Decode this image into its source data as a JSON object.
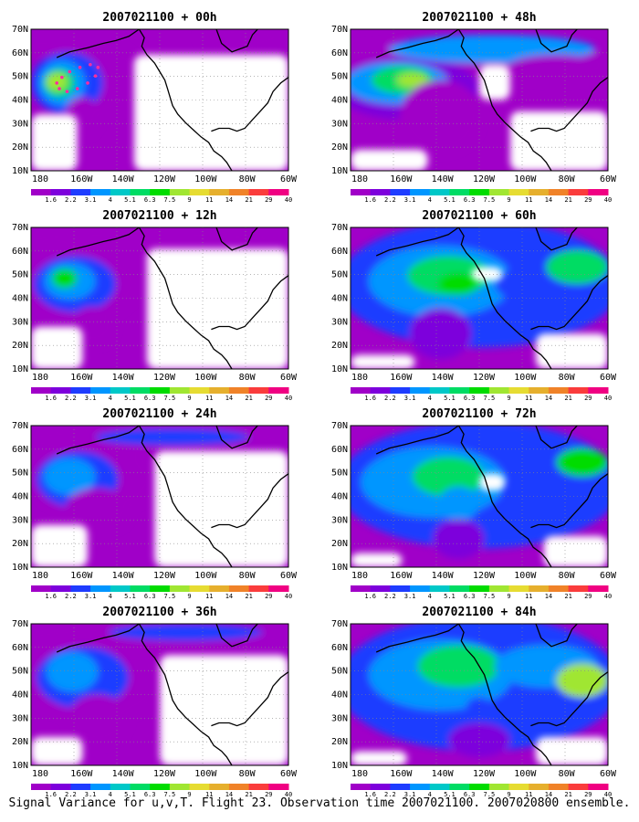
{
  "caption": "Signal Variance for u,v,T. Flight 23. Observation time 2007021100. 2007020800 ensemble.",
  "lat_labels": [
    "70N",
    "60N",
    "50N",
    "40N",
    "30N",
    "20N",
    "10N"
  ],
  "lon_labels": [
    "180",
    "160W",
    "140W",
    "120W",
    "100W",
    "80W",
    "60W"
  ],
  "colorbar": {
    "labels": [
      "1.6",
      "2.2",
      "3.1",
      "4",
      "5.1",
      "6.3",
      "7.5",
      "9",
      "11",
      "14",
      "21",
      "29",
      "40"
    ],
    "colors": [
      "#a000c8",
      "#7d00dc",
      "#1e3cff",
      "#0096ff",
      "#00c8c8",
      "#00dc64",
      "#00dc00",
      "#a0e632",
      "#e6dc32",
      "#e6af2d",
      "#f08228",
      "#fa3c3c",
      "#f00082"
    ]
  },
  "map": {
    "projection": "lat-lon",
    "lon_range": [
      "170E",
      "60W"
    ],
    "lat_range": [
      "10N",
      "70N"
    ],
    "grid": "dotted",
    "coastline_color": "#000000",
    "missing_color": "#ffffff"
  },
  "panels": [
    {
      "title": "2007021100 + 00h",
      "observation_track": "flight 23 drop points (magenta dots)"
    },
    {
      "title": "2007021100 + 48h"
    },
    {
      "title": "2007021100 + 12h"
    },
    {
      "title": "2007021100 + 60h"
    },
    {
      "title": "2007021100 + 24h"
    },
    {
      "title": "2007021100 + 72h"
    },
    {
      "title": "2007021100 + 36h"
    },
    {
      "title": "2007021100 + 84h"
    }
  ]
}
